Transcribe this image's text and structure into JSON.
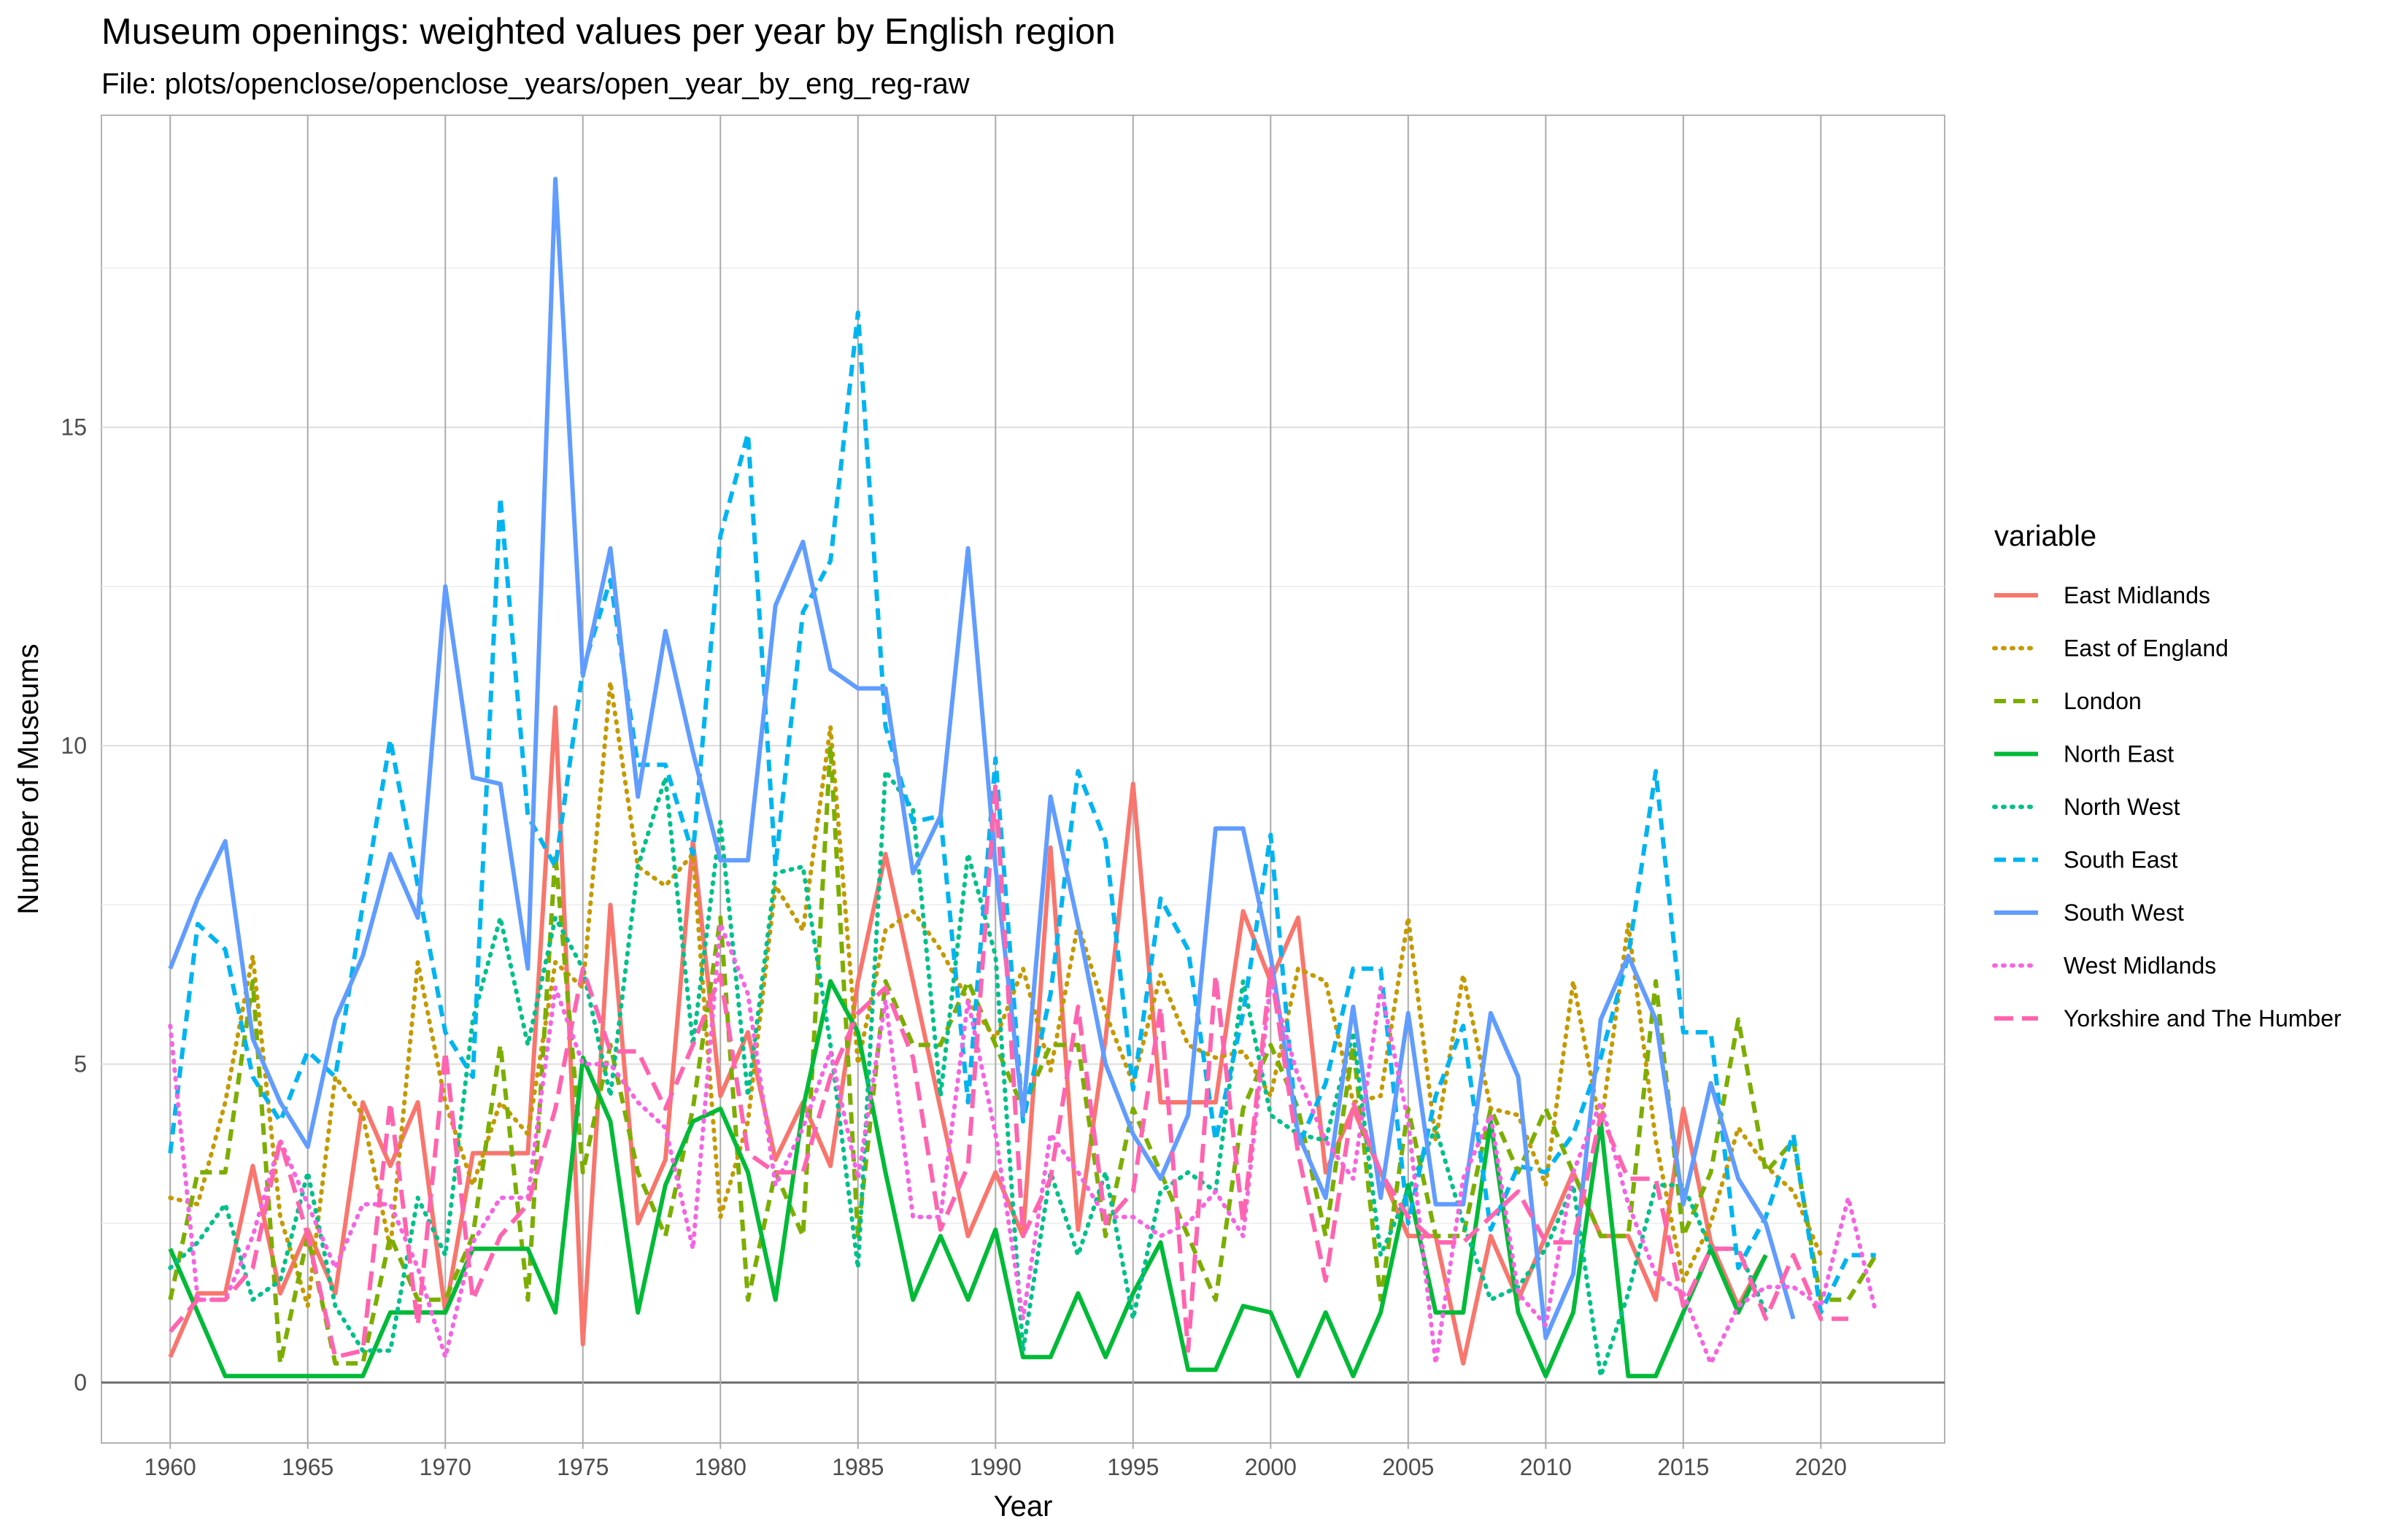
{
  "chart_data": {
    "type": "line",
    "title": "Museum openings: weighted values per year by English region",
    "subtitle": "File: plots/openclose/openclose_years/open_year_by_eng_reg-raw",
    "xlabel": "Year",
    "ylabel": "Number of Museums",
    "xlim": [
      1957.5,
      2024.5
    ],
    "ylim": [
      -0.95,
      19.9
    ],
    "x_ticks": [
      1960,
      1965,
      1970,
      1975,
      1980,
      1985,
      1990,
      1995,
      2000,
      2005,
      2010,
      2015,
      2020
    ],
    "x_tick_labels": [
      "1960",
      "1965",
      "1970",
      "1975",
      "1980",
      "1985",
      "1990",
      "1995",
      "2000",
      "2005",
      "2010",
      "2015",
      "2020"
    ],
    "y_ticks": [
      0,
      5,
      10,
      15
    ],
    "y_tick_labels": [
      "0",
      "5",
      "10",
      "15"
    ],
    "grid": true,
    "legend_title": "variable",
    "legend_position": "right",
    "x": [
      1960,
      1961,
      1962,
      1963,
      1964,
      1965,
      1966,
      1967,
      1968,
      1969,
      1970,
      1971,
      1972,
      1973,
      1974,
      1975,
      1976,
      1977,
      1978,
      1979,
      1980,
      1981,
      1982,
      1983,
      1984,
      1985,
      1986,
      1987,
      1988,
      1989,
      1990,
      1991,
      1992,
      1993,
      1994,
      1995,
      1996,
      1997,
      1998,
      1999,
      2000,
      2001,
      2002,
      2003,
      2004,
      2005,
      2006,
      2007,
      2008,
      2009,
      2010,
      2011,
      2012,
      2013,
      2014,
      2015,
      2016,
      2017,
      2018,
      2019,
      2020,
      2021,
      2022
    ],
    "series": [
      {
        "name": "East Midlands",
        "color": "#F8766D",
        "dash": "solid",
        "values": [
          0.4,
          1.4,
          1.4,
          3.4,
          1.4,
          2.4,
          1.4,
          4.4,
          3.4,
          4.4,
          1.1,
          3.6,
          3.6,
          3.6,
          10.6,
          0.6,
          7.5,
          2.5,
          3.5,
          8.5,
          4.5,
          5.5,
          3.5,
          4.4,
          3.4,
          6.3,
          8.3,
          6.3,
          4.3,
          2.3,
          3.3,
          2.3,
          8.4,
          2.4,
          5.4,
          9.4,
          4.4,
          4.4,
          4.4,
          7.4,
          6.3,
          7.3,
          3.3,
          4.3,
          3.3,
          2.3,
          2.3,
          0.3,
          2.3,
          1.3,
          2.3,
          3.3,
          2.3,
          2.3,
          1.3,
          4.3,
          2.2,
          1.2,
          2.0,
          null,
          null,
          null,
          null
        ]
      },
      {
        "name": "East of England",
        "color": "#C49A00",
        "dash": "dotted",
        "values": [
          2.9,
          2.8,
          4.4,
          6.7,
          2.6,
          1.2,
          4.8,
          4.2,
          2.1,
          6.6,
          4.4,
          3.1,
          4.4,
          3.9,
          6.6,
          6.2,
          11.0,
          8.1,
          7.8,
          8.3,
          2.6,
          4.1,
          7.8,
          7.1,
          10.3,
          5.0,
          7.1,
          7.4,
          6.8,
          6.0,
          5.4,
          6.5,
          4.9,
          7.2,
          5.8,
          4.7,
          6.4,
          5.3,
          5.1,
          5.2,
          4.5,
          6.5,
          6.3,
          4.4,
          4.5,
          7.3,
          3.8,
          6.4,
          4.3,
          4.2,
          3.1,
          6.3,
          4.0,
          7.2,
          3.8,
          1.6,
          2.5,
          4.0,
          3.4,
          3.0,
          2.0,
          null,
          null
        ]
      },
      {
        "name": "London",
        "color": "#7CAE00",
        "dash": "dashed",
        "values": [
          1.3,
          3.3,
          3.3,
          6.3,
          0.3,
          2.3,
          0.3,
          0.3,
          2.3,
          1.3,
          1.3,
          2.3,
          5.3,
          1.3,
          8.3,
          3.3,
          5.3,
          3.3,
          2.3,
          4.3,
          7.3,
          1.3,
          3.3,
          2.3,
          10.0,
          2.3,
          6.3,
          5.3,
          5.3,
          6.3,
          5.3,
          4.3,
          5.3,
          5.3,
          2.3,
          4.3,
          3.3,
          2.3,
          1.3,
          4.3,
          5.3,
          4.3,
          2.3,
          5.3,
          1.3,
          4.3,
          2.3,
          2.3,
          4.3,
          3.3,
          4.3,
          3.3,
          2.3,
          2.3,
          6.3,
          2.3,
          3.3,
          5.7,
          3.3,
          3.8,
          1.3,
          1.3,
          2.0
        ]
      },
      {
        "name": "North East",
        "color": "#00BA38",
        "dash": "solid",
        "values": [
          2.1,
          1.1,
          0.1,
          0.1,
          0.1,
          0.1,
          0.1,
          0.1,
          1.1,
          1.1,
          1.1,
          2.1,
          2.1,
          2.1,
          1.1,
          5.1,
          4.1,
          1.1,
          3.1,
          4.1,
          4.3,
          3.3,
          1.3,
          4.3,
          6.3,
          5.5,
          3.3,
          1.3,
          2.3,
          1.3,
          2.4,
          0.4,
          0.4,
          1.4,
          0.4,
          1.4,
          2.2,
          0.2,
          0.2,
          1.2,
          1.1,
          0.1,
          1.1,
          0.1,
          1.1,
          3.1,
          1.1,
          1.1,
          4.1,
          1.1,
          0.1,
          1.1,
          4.1,
          0.1,
          0.1,
          1.1,
          2.1,
          1.1,
          2.0,
          null,
          null,
          null,
          null
        ]
      },
      {
        "name": "North West",
        "color": "#00C08B",
        "dash": "dotted",
        "values": [
          1.8,
          2.2,
          2.8,
          1.3,
          1.6,
          3.3,
          1.2,
          0.5,
          0.5,
          2.9,
          2.0,
          5.7,
          7.3,
          5.3,
          7.3,
          6.5,
          4.5,
          8.1,
          9.5,
          5.3,
          8.8,
          4.5,
          8.0,
          8.1,
          5.3,
          1.8,
          9.6,
          9.0,
          4.5,
          8.3,
          6.7,
          0.5,
          3.3,
          2.0,
          3.3,
          1.0,
          3.0,
          3.3,
          3.0,
          6.3,
          4.2,
          3.9,
          3.8,
          5.5,
          2.0,
          3.0,
          4.0,
          2.5,
          1.3,
          1.5,
          2.1,
          3.1,
          0.1,
          1.4,
          3.1,
          3.1,
          2.1,
          2.1,
          1.1,
          null,
          null,
          null,
          null
        ]
      },
      {
        "name": "South East",
        "color": "#00B4F0",
        "dash": "dashed",
        "values": [
          3.6,
          7.2,
          6.8,
          4.8,
          4.1,
          5.2,
          4.8,
          7.5,
          10.1,
          7.8,
          5.5,
          4.8,
          13.9,
          8.9,
          8.1,
          11.2,
          12.6,
          9.7,
          9.7,
          8.3,
          13.3,
          14.9,
          8.1,
          12.1,
          12.9,
          16.8,
          10.3,
          8.8,
          8.9,
          4.4,
          9.8,
          4.1,
          6.1,
          9.6,
          8.5,
          4.6,
          7.6,
          6.8,
          3.8,
          5.8,
          8.6,
          3.7,
          4.7,
          6.5,
          6.5,
          2.5,
          4.5,
          5.6,
          2.4,
          3.4,
          3.3,
          3.9,
          5.1,
          6.7,
          9.6,
          5.5,
          5.5,
          1.8,
          2.6,
          3.9,
          1.1,
          2.0,
          2.0
        ]
      },
      {
        "name": "South West",
        "color": "#619CFF",
        "dash": "solid",
        "values": [
          6.5,
          7.6,
          8.5,
          5.4,
          4.4,
          3.7,
          5.7,
          6.7,
          8.3,
          7.3,
          12.5,
          9.5,
          9.4,
          6.5,
          18.9,
          11.1,
          13.1,
          9.2,
          11.8,
          9.9,
          8.2,
          8.2,
          12.2,
          13.2,
          11.2,
          10.9,
          10.9,
          8.0,
          8.9,
          13.1,
          8.1,
          4.2,
          9.2,
          7.2,
          5.0,
          3.9,
          3.2,
          4.2,
          8.7,
          8.7,
          6.7,
          3.9,
          2.9,
          5.9,
          2.9,
          5.8,
          2.8,
          2.8,
          5.8,
          4.8,
          0.7,
          1.7,
          5.7,
          6.7,
          5.7,
          2.8,
          4.7,
          3.2,
          2.5,
          1.0,
          null,
          null,
          null
        ]
      },
      {
        "name": "West Midlands",
        "color": "#F564E3",
        "dash": "dotted",
        "values": [
          5.6,
          1.3,
          1.3,
          2.3,
          3.8,
          2.8,
          1.8,
          2.8,
          2.8,
          1.8,
          0.4,
          2.2,
          2.9,
          2.9,
          6.2,
          5.0,
          5.0,
          4.4,
          4.0,
          2.1,
          7.2,
          6.1,
          3.1,
          4.0,
          5.2,
          3.2,
          6.0,
          2.6,
          2.6,
          6.0,
          3.9,
          1.0,
          3.9,
          3.3,
          2.6,
          2.6,
          2.3,
          2.5,
          3.0,
          2.3,
          6.3,
          4.8,
          3.8,
          3.2,
          6.2,
          4.1,
          0.3,
          3.2,
          4.2,
          1.4,
          0.9,
          3.3,
          4.4,
          2.8,
          1.7,
          1.4,
          0.3,
          1.2,
          1.5,
          1.5,
          1.2,
          2.9,
          1.1
        ]
      },
      {
        "name": "Yorkshire and The Humber",
        "color": "#FF64B0",
        "dash": "longdash",
        "values": [
          0.8,
          1.3,
          1.3,
          1.8,
          3.8,
          2.3,
          0.4,
          0.5,
          4.4,
          0.9,
          5.2,
          1.3,
          2.3,
          2.8,
          4.3,
          6.5,
          5.2,
          5.2,
          4.3,
          5.3,
          6.4,
          3.6,
          3.3,
          3.3,
          4.8,
          5.8,
          6.2,
          5.1,
          2.4,
          3.4,
          9.4,
          2.3,
          3.2,
          5.9,
          2.5,
          3.0,
          5.9,
          0.5,
          6.4,
          2.5,
          6.5,
          3.6,
          1.6,
          4.4,
          3.3,
          2.6,
          2.2,
          2.2,
          2.6,
          3.0,
          2.2,
          2.2,
          4.2,
          3.2,
          3.2,
          1.2,
          2.1,
          2.1,
          1.0,
          2.0,
          1.0,
          1.0,
          null
        ]
      }
    ]
  }
}
